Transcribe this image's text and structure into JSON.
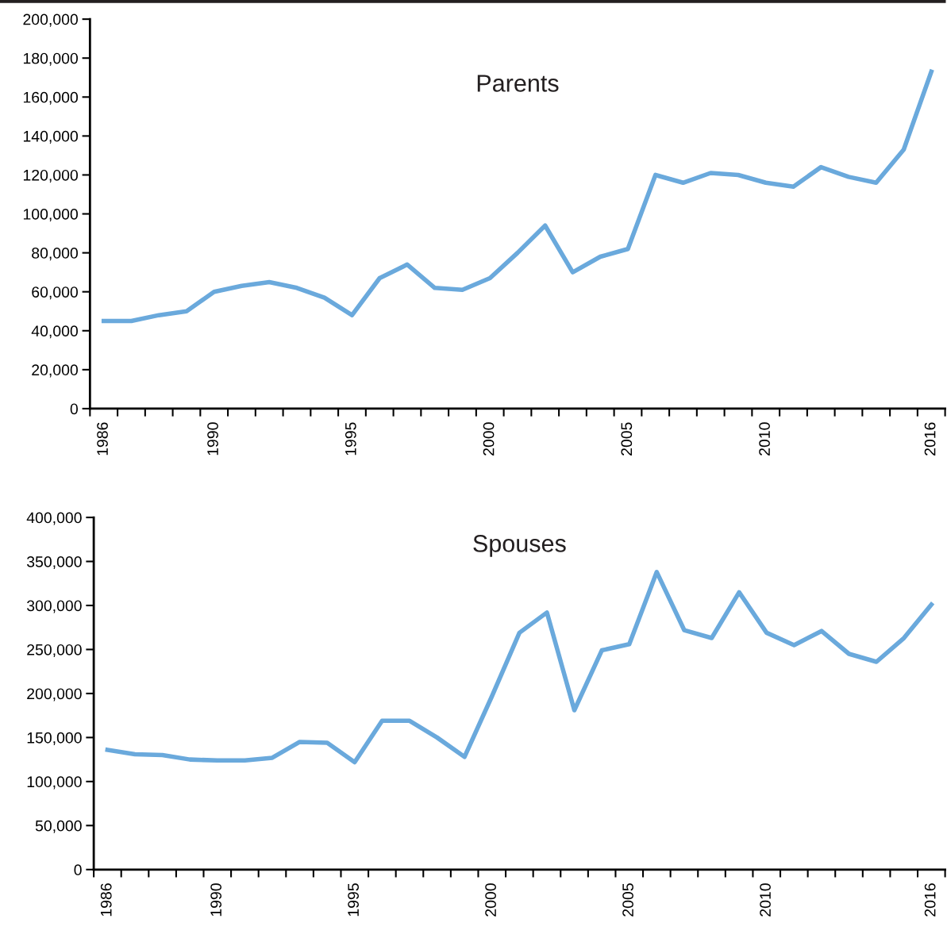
{
  "chart_data": [
    {
      "type": "line",
      "title": "Parents",
      "categories": [
        "1986",
        null,
        null,
        null,
        "1990",
        null,
        null,
        null,
        null,
        "1995",
        null,
        null,
        null,
        null,
        "2000",
        null,
        null,
        null,
        null,
        "2005",
        null,
        null,
        null,
        null,
        "2010",
        null,
        null,
        null,
        null,
        null,
        "2016"
      ],
      "series": [
        {
          "color": "#6aa9dc",
          "values": [
            45000,
            45000,
            48000,
            50000,
            60000,
            63000,
            65000,
            62000,
            57000,
            48000,
            67000,
            74000,
            62000,
            61000,
            67000,
            80000,
            94000,
            70000,
            78000,
            82000,
            120000,
            116000,
            121000,
            120000,
            116000,
            114000,
            124000,
            119000,
            116000,
            133000,
            173000
          ]
        }
      ],
      "ylim": [
        0,
        200000
      ],
      "yticks": [
        0,
        {
          "value": 20000,
          "label": "20,000"
        },
        {
          "value": 40000,
          "label": "40,000"
        },
        {
          "value": 60000,
          "label": "60,000"
        },
        {
          "value": 80000,
          "label": "80,000"
        },
        {
          "value": 100000,
          "label": "100,000"
        },
        {
          "value": 120000,
          "label": "120,000"
        },
        {
          "value": 140000,
          "label": "140,000"
        },
        {
          "value": 160000,
          "label": "160,000"
        },
        {
          "value": 180000,
          "label": "180,000"
        },
        {
          "value": 200000,
          "label": "200,000"
        }
      ],
      "grid": false,
      "marker": "none",
      "line_style": "solid"
    },
    {
      "type": "line",
      "title": "Spouses",
      "categories": [
        "1986",
        null,
        null,
        null,
        "1990",
        null,
        null,
        null,
        null,
        "1995",
        null,
        null,
        null,
        null,
        "2000",
        null,
        null,
        null,
        null,
        "2005",
        null,
        null,
        null,
        null,
        "2010",
        null,
        null,
        null,
        null,
        null,
        "2016"
      ],
      "series": [
        {
          "color": "#6aa9dc",
          "values": [
            136000,
            131000,
            130000,
            125000,
            124000,
            124000,
            127000,
            145000,
            144000,
            122000,
            169000,
            169000,
            150000,
            128000,
            197000,
            269000,
            292000,
            181000,
            249000,
            256000,
            338000,
            272000,
            263000,
            315000,
            269000,
            255000,
            271000,
            245000,
            236000,
            263000,
            301000
          ]
        }
      ],
      "ylim": [
        0,
        400000
      ],
      "yticks": [
        0,
        {
          "value": 50000,
          "label": "50,000"
        },
        {
          "value": 100000,
          "label": "100,000"
        },
        {
          "value": 150000,
          "label": "150,000"
        },
        {
          "value": 200000,
          "label": "200,000"
        },
        {
          "value": 250000,
          "label": "250,000"
        },
        {
          "value": 300000,
          "label": "300,000"
        },
        {
          "value": 350000,
          "label": "350,000"
        },
        {
          "value": 400000,
          "label": "400,000"
        }
      ],
      "grid": false,
      "marker": "none",
      "line_style": "solid"
    }
  ]
}
